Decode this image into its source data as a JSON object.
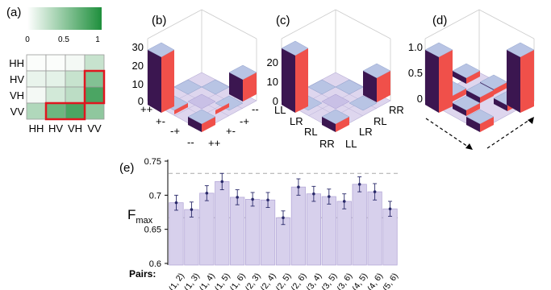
{
  "panels": {
    "a": {
      "label": "(a)",
      "colorbar": {
        "ticks": [
          "0",
          "0.5",
          "1"
        ],
        "color_low": "#ffffff",
        "color_high": "#1e8f3c"
      },
      "rows": [
        "HH",
        "HV",
        "VH",
        "VV"
      ],
      "cols": [
        "HH",
        "HV",
        "VH",
        "VV"
      ],
      "matrix": [
        [
          0.02,
          0.02,
          0.05,
          0.25
        ],
        [
          0.1,
          0.12,
          0.25,
          0.55
        ],
        [
          0.05,
          0.2,
          0.3,
          0.8
        ],
        [
          0.35,
          0.65,
          0.8,
          0.5
        ]
      ],
      "highlight_color": "#e0161f"
    },
    "b": {
      "label": "(b)",
      "zticks": [
        "30",
        "20",
        "10",
        "0"
      ],
      "left_labels": [
        "++",
        "+-",
        "-+",
        "--"
      ],
      "right_labels": [
        "--",
        "-+",
        "+-",
        "++"
      ]
    },
    "c": {
      "label": "(c)",
      "zticks": [
        "20",
        "10",
        "0"
      ],
      "left_labels": [
        "LL",
        "LR",
        "RL",
        "RR"
      ],
      "right_labels": [
        "RR",
        "RL",
        "LR",
        "LL"
      ]
    },
    "d": {
      "label": "(d)",
      "zticks": [
        "1.0",
        "0.5",
        "0"
      ]
    }
  },
  "colors": {
    "bar_top": "#b8c4e4",
    "bar_side_dark": "#3b1650",
    "bar_side_red": "#f0504a",
    "bar_fill": "#d7d0ec",
    "bar_edge": "#b5a9d8",
    "point": "#2a2a6a",
    "dashed": "#aaaaaa"
  },
  "chart_data": {
    "type": "bar",
    "title": "(e)",
    "ylabel": "F",
    "ylabel_sub": "max",
    "xlabel": "Pairs:",
    "ylim": [
      0.6,
      0.75
    ],
    "yticks": [
      "0.6",
      "0.65",
      "0.7",
      "0.75"
    ],
    "reference_lines": [
      0.667,
      0.732
    ],
    "categories": [
      "(1, 2)",
      "(1, 3)",
      "(1, 4)",
      "(1, 5)",
      "(1, 6)",
      "(2, 3)",
      "(2, 4)",
      "(2, 5)",
      "(2, 6)",
      "(3, 4)",
      "(3, 5)",
      "(3, 6)",
      "(4, 5)",
      "(4, 6)",
      "(5, 6)"
    ],
    "values": [
      0.689,
      0.679,
      0.703,
      0.72,
      0.697,
      0.694,
      0.693,
      0.667,
      0.712,
      0.702,
      0.698,
      0.691,
      0.716,
      0.705,
      0.68
    ],
    "errors": [
      0.011,
      0.011,
      0.011,
      0.012,
      0.011,
      0.01,
      0.011,
      0.01,
      0.012,
      0.011,
      0.011,
      0.011,
      0.011,
      0.012,
      0.011
    ]
  }
}
